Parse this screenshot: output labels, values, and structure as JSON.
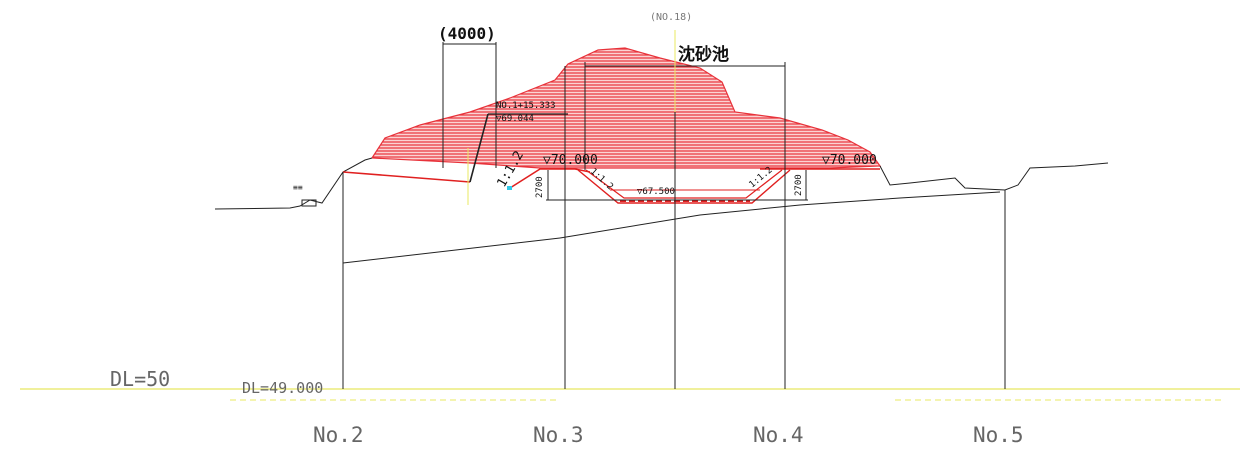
{
  "drawing": {
    "station_ref": "(NO.18)",
    "facility_label": "沈砂池",
    "width_dim": "(4000)",
    "point_station": "NO.1+15.333",
    "point_elev": "▽69.044",
    "crest_left": "▽70.000",
    "crest_right": "▽70.000",
    "bottom_elev": "▽67.500",
    "slope_left_outer": "1:1.2",
    "slope_left_inner": "1:1.2",
    "slope_right_inner": "1:1.2",
    "depth_left": "2700",
    "depth_right": "2700",
    "datum_main": "DL=50",
    "datum_sub": "DL=49.000",
    "small_mark": "≡≡",
    "stations": [
      "No.2",
      "No.3",
      "No.4",
      "No.5"
    ]
  },
  "colors": {
    "fill_red": "#e8323a",
    "line_red": "#e02020",
    "datum_yellow": "#e8e860",
    "label_gray": "#777777"
  }
}
